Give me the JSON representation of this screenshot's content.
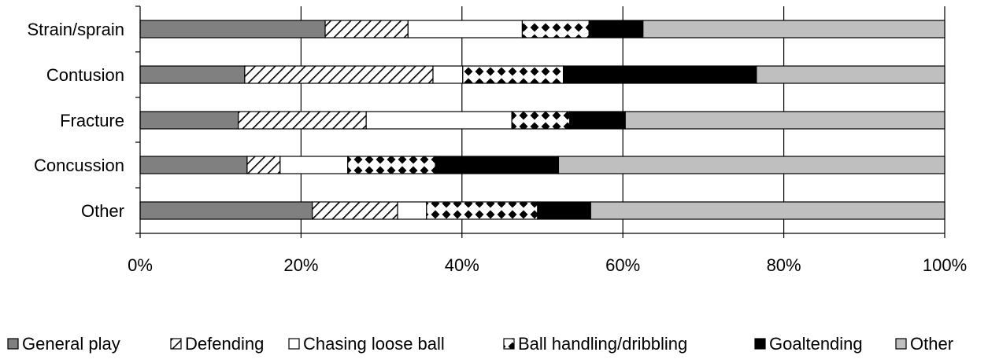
{
  "chart_data": {
    "type": "bar",
    "orientation": "horizontal",
    "stacked": "percent",
    "categories": [
      "Strain/sprain",
      "Contusion",
      "Fracture",
      "Concussion",
      "Other"
    ],
    "series": [
      {
        "name": "General play",
        "color": "#808080",
        "pattern": "solid",
        "values": [
          23.0,
          13.0,
          12.2,
          13.3,
          21.4
        ]
      },
      {
        "name": "Defending",
        "color": "#ffffff",
        "pattern": "diagonal-hatch",
        "values": [
          10.3,
          23.4,
          15.9,
          4.1,
          10.6
        ]
      },
      {
        "name": "Chasing loose ball",
        "color": "#ffffff",
        "pattern": "none",
        "values": [
          14.2,
          3.7,
          18.1,
          8.4,
          3.6
        ]
      },
      {
        "name": "Ball handling/dribbling",
        "color": "#ffffff",
        "pattern": "diamonds",
        "values": [
          8.3,
          12.5,
          7.2,
          10.9,
          13.8
        ]
      },
      {
        "name": "Goaltending",
        "color": "#000000",
        "pattern": "solid",
        "values": [
          6.7,
          24.0,
          6.9,
          15.3,
          6.6
        ]
      },
      {
        "name": "Other",
        "color": "#bfbfbf",
        "pattern": "solid",
        "values": [
          37.5,
          23.4,
          39.7,
          48.0,
          44.0
        ]
      }
    ],
    "x_ticks": [
      "0%",
      "20%",
      "40%",
      "60%",
      "80%",
      "100%"
    ],
    "xlim": [
      0,
      100
    ],
    "xlabel": "",
    "ylabel": "",
    "title": "",
    "grid": "vertical",
    "legend_position": "bottom"
  }
}
